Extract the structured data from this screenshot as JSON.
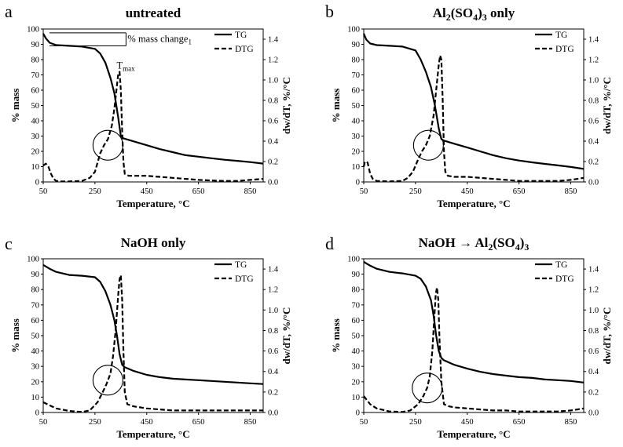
{
  "chart_data": [
    {
      "type": "line",
      "letter": "a",
      "title": "untreated",
      "xlabel": "Temperature, °C",
      "ylabel": "% mass",
      "y2label": "dw/dT, %/°C",
      "xlim": [
        50,
        900
      ],
      "ylim": [
        0,
        100
      ],
      "y2lim": [
        0,
        1.5
      ],
      "xticks": [
        50,
        250,
        450,
        650,
        850
      ],
      "yticks": [
        0,
        10,
        20,
        30,
        40,
        50,
        60,
        70,
        80,
        90,
        100
      ],
      "y2ticks": [
        0,
        0.2,
        0.4,
        0.6,
        0.8,
        1.0,
        1.2,
        1.4
      ],
      "legend": [
        "TG",
        "DTG"
      ],
      "annotations": {
        "mass_change": "% mass change",
        "mass_change_sub": "1",
        "tmax": "T",
        "tmax_sub": "max"
      },
      "circle": {
        "x": 300,
        "y": 24
      },
      "series": [
        {
          "name": "TG",
          "axis": "left",
          "style": "solid",
          "x": [
            50,
            60,
            75,
            100,
            150,
            200,
            250,
            270,
            290,
            310,
            325,
            340,
            350,
            360,
            400,
            450,
            500,
            550,
            600,
            650,
            700,
            750,
            800,
            850,
            900
          ],
          "y": [
            97,
            94,
            91,
            89.5,
            89,
            88.5,
            87,
            84,
            78,
            68,
            58,
            42,
            30,
            28.5,
            26.5,
            24,
            21.5,
            19.5,
            17.5,
            16.5,
            15.5,
            14.5,
            13.8,
            13,
            12
          ]
        },
        {
          "name": "DTG",
          "axis": "right",
          "style": "dashed",
          "x": [
            50,
            60,
            70,
            80,
            90,
            100,
            120,
            150,
            200,
            230,
            250,
            270,
            285,
            300,
            315,
            325,
            335,
            340,
            345,
            350,
            355,
            360,
            365,
            380,
            400,
            450,
            500,
            550,
            600,
            650,
            700,
            750,
            800,
            850,
            900
          ],
          "y": [
            0.16,
            0.18,
            0.15,
            0.08,
            0.03,
            0.01,
            0.005,
            0.005,
            0.01,
            0.04,
            0.1,
            0.28,
            0.36,
            0.42,
            0.55,
            0.72,
            0.95,
            1.06,
            1.08,
            0.9,
            0.5,
            0.2,
            0.08,
            0.06,
            0.06,
            0.06,
            0.05,
            0.04,
            0.03,
            0.02,
            0.015,
            0.01,
            0.01,
            0.02,
            0.03
          ]
        }
      ]
    },
    {
      "type": "line",
      "letter": "b",
      "title": "Al2(SO4)3 only",
      "title_parts": [
        "Al",
        "2",
        "(SO",
        "4",
        ")",
        "3",
        " only"
      ],
      "xlabel": "Temperature, °C",
      "ylabel": "% mass",
      "y2label": "dw/dT, %/°C",
      "xlim": [
        50,
        900
      ],
      "ylim": [
        0,
        100
      ],
      "y2lim": [
        0,
        1.5
      ],
      "xticks": [
        50,
        250,
        450,
        650,
        850
      ],
      "yticks": [
        0,
        10,
        20,
        30,
        40,
        50,
        60,
        70,
        80,
        90,
        100
      ],
      "y2ticks": [
        0,
        0.2,
        0.4,
        0.6,
        0.8,
        1.0,
        1.2,
        1.4
      ],
      "legend": [
        "TG",
        "DTG"
      ],
      "circle": {
        "x": 300,
        "y": 24
      },
      "series": [
        {
          "name": "TG",
          "axis": "left",
          "style": "solid",
          "x": [
            50,
            60,
            75,
            100,
            150,
            200,
            250,
            270,
            290,
            310,
            325,
            340,
            350,
            360,
            400,
            450,
            500,
            550,
            600,
            650,
            700,
            750,
            800,
            850,
            900
          ],
          "y": [
            97,
            93,
            90.5,
            89.5,
            89,
            88.5,
            86,
            80,
            72,
            62,
            50,
            35,
            28,
            27,
            25,
            22.5,
            20,
            17.5,
            15.5,
            14,
            12.8,
            11.8,
            10.8,
            9.8,
            8.5
          ]
        },
        {
          "name": "DTG",
          "axis": "right",
          "style": "dashed",
          "x": [
            50,
            55,
            65,
            75,
            85,
            100,
            150,
            200,
            220,
            240,
            260,
            275,
            290,
            305,
            320,
            330,
            340,
            345,
            350,
            355,
            360,
            365,
            375,
            400,
            450,
            500,
            550,
            600,
            650,
            700,
            750,
            800,
            850,
            900
          ],
          "y": [
            0.15,
            0.2,
            0.19,
            0.08,
            0.03,
            0.01,
            0.005,
            0.01,
            0.04,
            0.1,
            0.22,
            0.3,
            0.36,
            0.45,
            0.65,
            0.9,
            1.15,
            1.24,
            1.2,
            0.8,
            0.3,
            0.1,
            0.06,
            0.05,
            0.05,
            0.04,
            0.03,
            0.02,
            0.01,
            0.01,
            0.01,
            0.01,
            0.02,
            0.04
          ]
        }
      ]
    },
    {
      "type": "line",
      "letter": "c",
      "title": "NaOH only",
      "xlabel": "Temperature, °C",
      "ylabel": "% mass",
      "y2label": "dw/dT, %/°C",
      "xlim": [
        50,
        900
      ],
      "ylim": [
        0,
        100
      ],
      "y2lim": [
        0,
        1.5
      ],
      "xticks": [
        50,
        250,
        450,
        650,
        850
      ],
      "yticks": [
        0,
        10,
        20,
        30,
        40,
        50,
        60,
        70,
        80,
        90,
        100
      ],
      "y2ticks": [
        0,
        0.2,
        0.4,
        0.6,
        0.8,
        1.0,
        1.2,
        1.4
      ],
      "legend": [
        "TG",
        "DTG"
      ],
      "circle": {
        "x": 300,
        "y": 21
      },
      "series": [
        {
          "name": "TG",
          "axis": "left",
          "style": "solid",
          "x": [
            50,
            75,
            100,
            150,
            200,
            250,
            270,
            290,
            310,
            325,
            335,
            345,
            355,
            365,
            400,
            450,
            500,
            550,
            600,
            650,
            700,
            750,
            800,
            850,
            900
          ],
          "y": [
            96,
            93.5,
            91.5,
            89.5,
            89,
            88,
            85,
            79,
            70,
            60,
            50,
            38,
            31,
            29.5,
            27,
            24.5,
            23,
            22,
            21.5,
            21,
            20.5,
            20,
            19.5,
            19,
            18.5
          ]
        },
        {
          "name": "DTG",
          "axis": "right",
          "style": "dashed",
          "x": [
            50,
            75,
            100,
            150,
            200,
            230,
            260,
            280,
            295,
            310,
            320,
            330,
            340,
            345,
            350,
            355,
            360,
            365,
            375,
            400,
            450,
            500,
            550,
            600,
            650,
            700,
            750,
            800,
            850,
            900
          ],
          "y": [
            0.1,
            0.07,
            0.04,
            0.015,
            0.005,
            0.02,
            0.1,
            0.2,
            0.28,
            0.38,
            0.55,
            0.8,
            1.15,
            1.3,
            1.34,
            1.1,
            0.6,
            0.2,
            0.08,
            0.06,
            0.04,
            0.03,
            0.02,
            0.02,
            0.02,
            0.02,
            0.02,
            0.02,
            0.02,
            0.02
          ]
        }
      ]
    },
    {
      "type": "line",
      "letter": "d",
      "title": "NaOH → Al2(SO4)3",
      "title_parts": [
        "NaOH → Al",
        "2",
        "(SO",
        "4",
        ")",
        "3"
      ],
      "xlabel": "Temperature, °C",
      "ylabel": "% mass",
      "y2label": "dw/dT, %/°C",
      "xlim": [
        50,
        900
      ],
      "ylim": [
        0,
        100
      ],
      "y2lim": [
        0,
        1.5
      ],
      "xticks": [
        50,
        250,
        450,
        650,
        850
      ],
      "yticks": [
        0,
        10,
        20,
        30,
        40,
        50,
        60,
        70,
        80,
        90,
        100
      ],
      "y2ticks": [
        0,
        0.2,
        0.4,
        0.6,
        0.8,
        1.0,
        1.2,
        1.4
      ],
      "legend": [
        "TG",
        "DTG"
      ],
      "circle": {
        "x": 295,
        "y": 16
      },
      "series": [
        {
          "name": "TG",
          "axis": "left",
          "style": "solid",
          "x": [
            50,
            75,
            100,
            150,
            200,
            250,
            270,
            290,
            310,
            320,
            330,
            340,
            350,
            360,
            400,
            450,
            500,
            550,
            600,
            650,
            700,
            750,
            800,
            850,
            900
          ],
          "y": [
            98,
            95.5,
            93.5,
            91.5,
            90.5,
            89,
            87,
            82,
            73,
            63,
            50,
            40,
            35.5,
            34,
            31,
            28.5,
            26.5,
            25,
            24,
            23,
            22.5,
            21.5,
            21,
            20.5,
            19.5
          ]
        },
        {
          "name": "DTG",
          "axis": "right",
          "style": "dashed",
          "x": [
            50,
            75,
            100,
            150,
            200,
            230,
            260,
            280,
            295,
            305,
            315,
            322,
            328,
            333,
            338,
            343,
            350,
            360,
            380,
            400,
            450,
            500,
            550,
            600,
            650,
            700,
            750,
            800,
            850,
            900
          ],
          "y": [
            0.16,
            0.08,
            0.04,
            0.01,
            0.005,
            0.02,
            0.08,
            0.16,
            0.24,
            0.35,
            0.6,
            0.9,
            1.15,
            1.22,
            1.1,
            0.7,
            0.3,
            0.08,
            0.06,
            0.05,
            0.04,
            0.03,
            0.02,
            0.02,
            0.01,
            0.01,
            0.01,
            0.01,
            0.02,
            0.04
          ]
        }
      ]
    }
  ]
}
